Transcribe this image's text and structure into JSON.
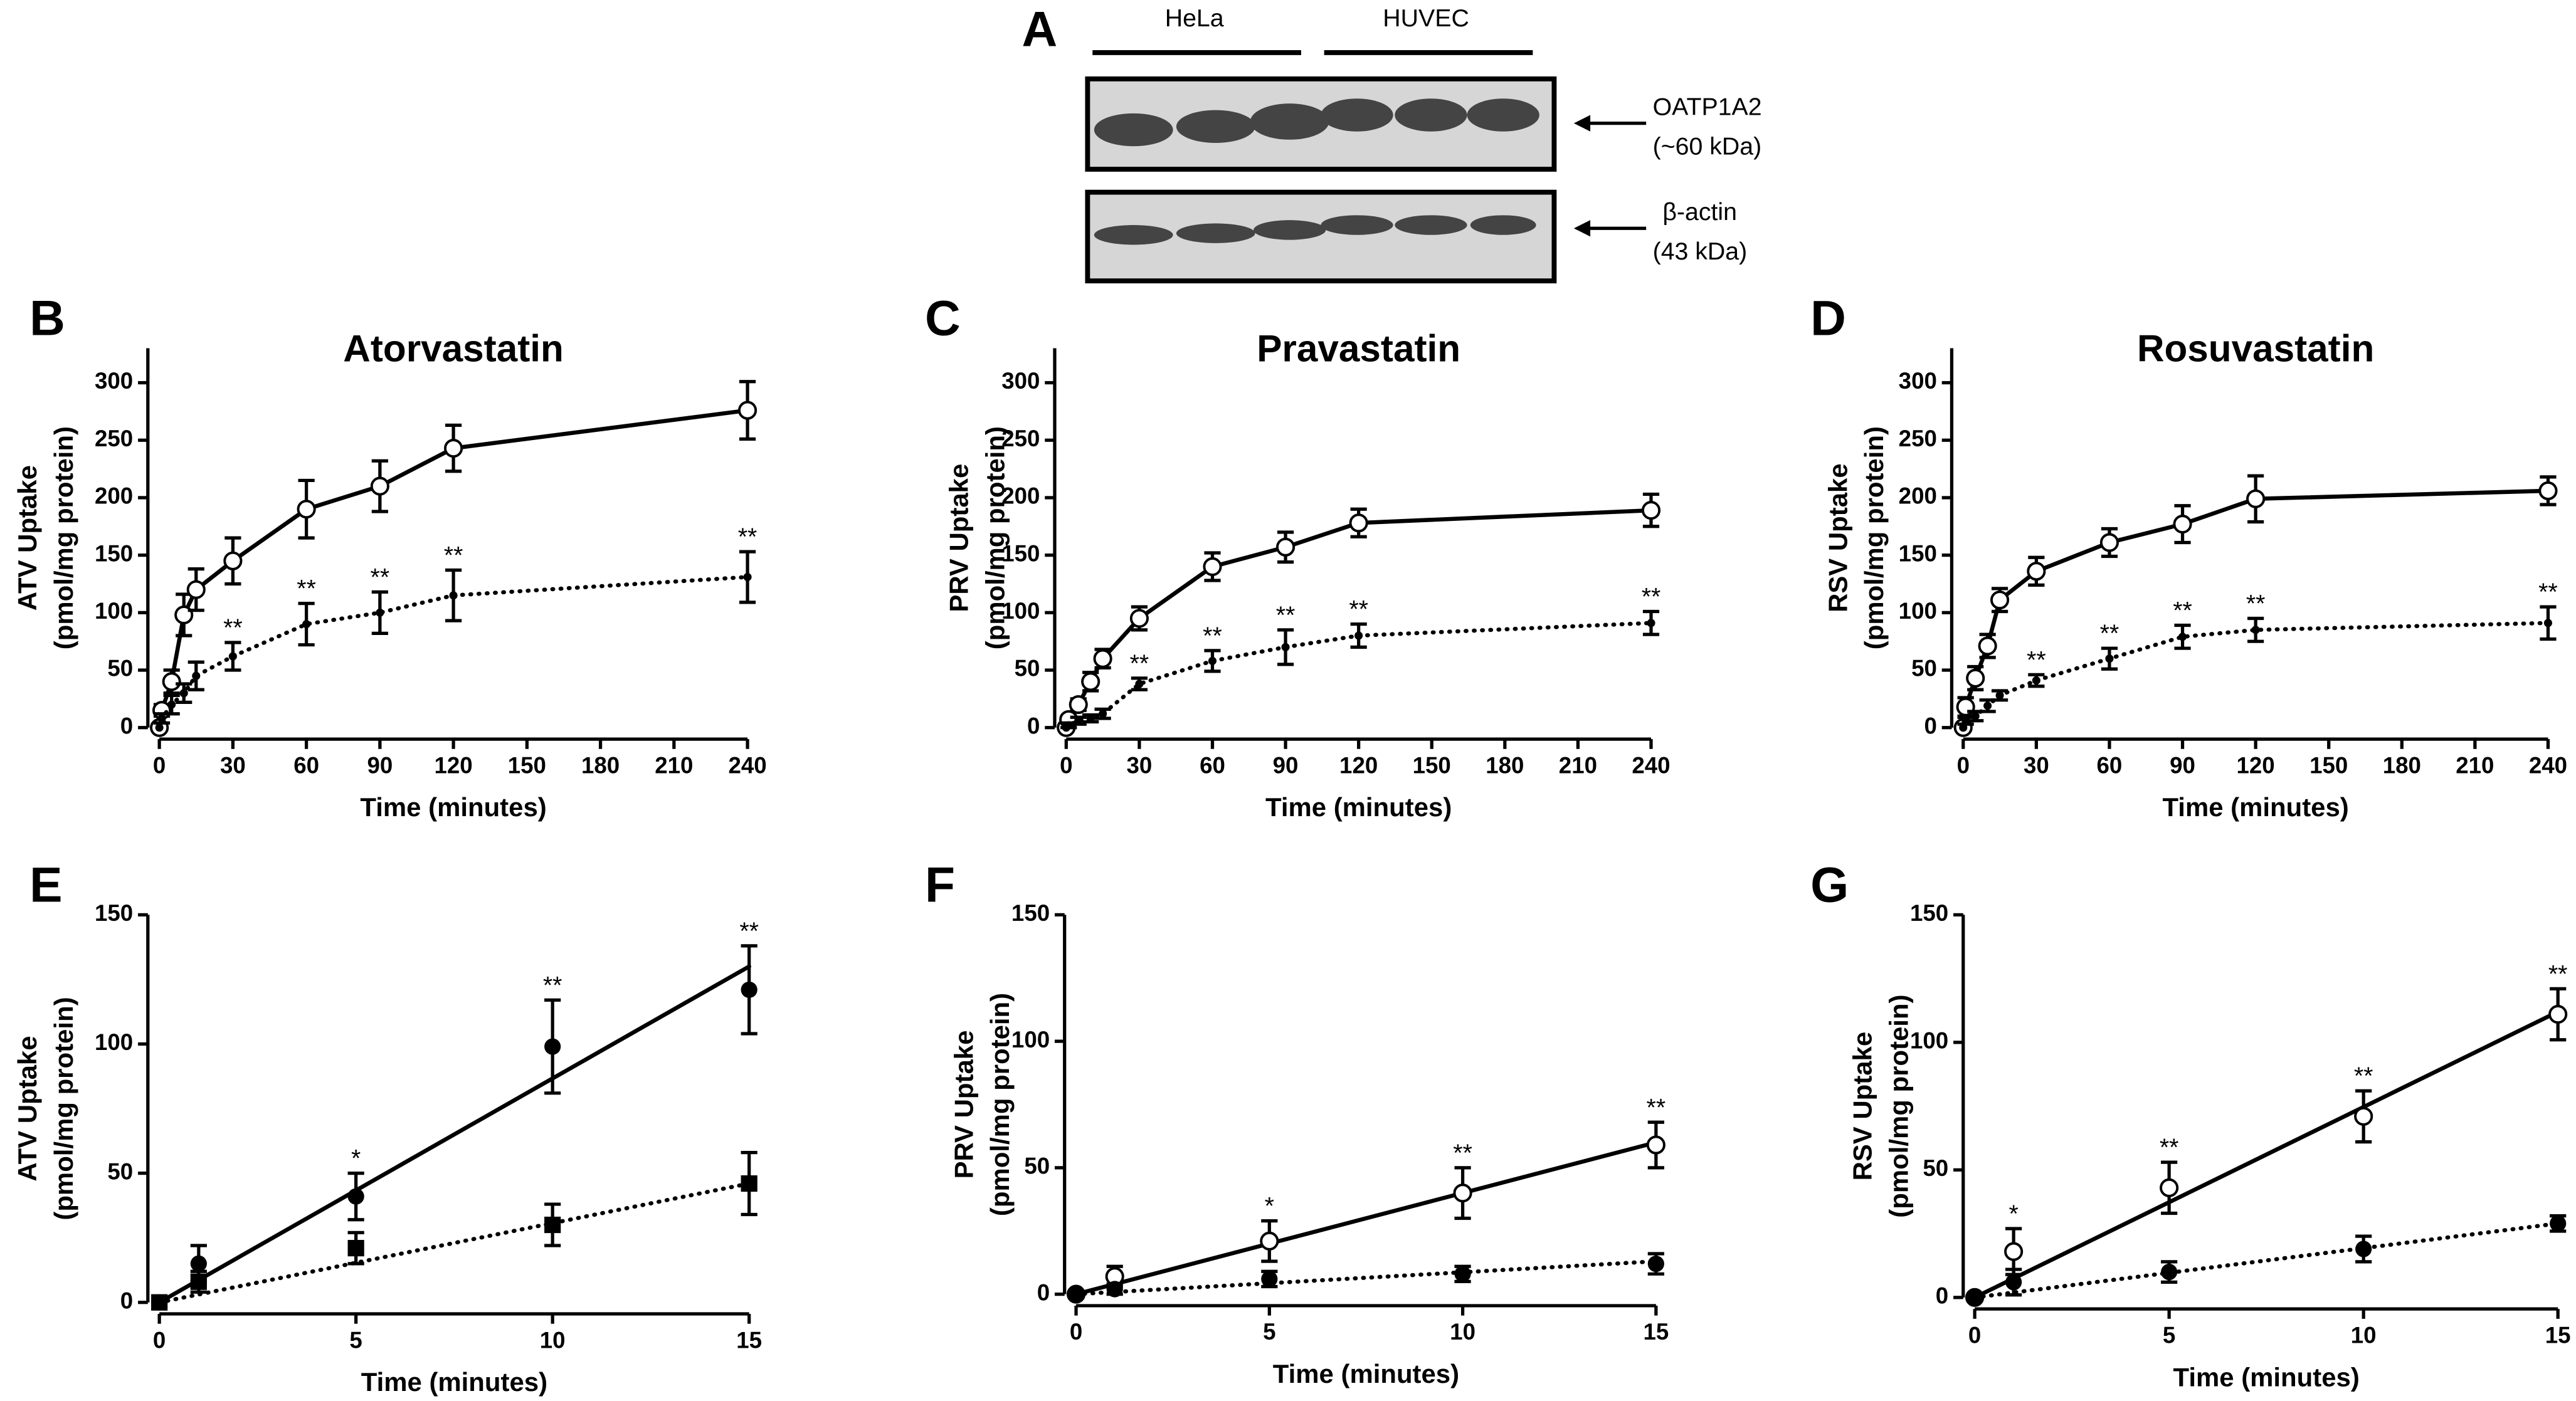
{
  "blot": {
    "panel": "A",
    "groups": [
      "HeLa",
      "HUVEC"
    ],
    "bands": [
      {
        "name": "OATP1A2",
        "size": "(~60 kDa)"
      },
      {
        "name": "β-actin",
        "size": "(43 kDa)"
      }
    ]
  },
  "chart_data": [
    {
      "type": "line",
      "panel": "B",
      "title": "Atorvastatin",
      "ylabel": [
        "ATV Uptake",
        "(pmol/mg protein)"
      ],
      "xlabel": "Time (minutes)",
      "x": [
        0,
        1,
        5,
        10,
        15,
        30,
        60,
        90,
        120,
        240
      ],
      "xlim": [
        0,
        240
      ],
      "xticks": [
        0,
        30,
        60,
        90,
        120,
        150,
        180,
        210,
        240
      ],
      "ylim": [
        0,
        330
      ],
      "yticks": [
        0,
        50,
        100,
        150,
        200,
        250,
        300
      ],
      "series": [
        {
          "color": "#000000",
          "line_style": "solid",
          "marker": "open-circle",
          "values": [
            0,
            15,
            40,
            98,
            120,
            145,
            190,
            210,
            243,
            276
          ],
          "errors": [
            0,
            5,
            10,
            18,
            18,
            20,
            25,
            22,
            20,
            25
          ]
        },
        {
          "color": "#000000",
          "line_style": "dotted",
          "marker": "dot",
          "values": [
            0,
            8,
            20,
            30,
            45,
            62,
            90,
            100,
            115,
            131
          ],
          "errors": [
            0,
            4,
            8,
            8,
            12,
            12,
            18,
            18,
            22,
            22
          ],
          "significance": [
            null,
            null,
            null,
            null,
            null,
            "**",
            "**",
            "**",
            "**",
            "**"
          ]
        }
      ]
    },
    {
      "type": "line",
      "panel": "C",
      "title": "Pravastatin",
      "ylabel": [
        "PRV Uptake",
        "(pmol/mg protein)"
      ],
      "xlabel": "Time (minutes)",
      "x": [
        0,
        1,
        5,
        10,
        15,
        30,
        60,
        90,
        120,
        240
      ],
      "xlim": [
        0,
        240
      ],
      "xticks": [
        0,
        30,
        60,
        90,
        120,
        150,
        180,
        210,
        240
      ],
      "ylim": [
        0,
        330
      ],
      "yticks": [
        0,
        50,
        100,
        150,
        200,
        250,
        300
      ],
      "series": [
        {
          "color": "#000000",
          "line_style": "solid",
          "marker": "open-circle",
          "values": [
            0,
            7,
            20,
            40,
            60,
            95,
            140,
            157,
            178,
            189
          ],
          "errors": [
            0,
            3,
            5,
            8,
            8,
            10,
            12,
            13,
            12,
            14
          ]
        },
        {
          "color": "#000000",
          "line_style": "dotted",
          "marker": "dot",
          "values": [
            0,
            2,
            6,
            8,
            12,
            38,
            58,
            70,
            80,
            91
          ],
          "errors": [
            0,
            2,
            3,
            3,
            4,
            5,
            9,
            15,
            10,
            10
          ],
          "significance": [
            null,
            null,
            null,
            null,
            null,
            "**",
            "**",
            "**",
            "**",
            "**"
          ]
        }
      ]
    },
    {
      "type": "line",
      "panel": "D",
      "title": "Rosuvastatin",
      "ylabel": [
        "RSV Uptake",
        "(pmol/mg protein)"
      ],
      "xlabel": "Time (minutes)",
      "x": [
        0,
        1,
        5,
        10,
        15,
        30,
        60,
        90,
        120,
        240
      ],
      "xlim": [
        0,
        240
      ],
      "xticks": [
        0,
        30,
        60,
        90,
        120,
        150,
        180,
        210,
        240
      ],
      "ylim": [
        0,
        330
      ],
      "yticks": [
        0,
        50,
        100,
        150,
        200,
        250,
        300
      ],
      "series": [
        {
          "color": "#000000",
          "line_style": "solid",
          "marker": "open-circle",
          "values": [
            0,
            18,
            43,
            71,
            111,
            136,
            161,
            177,
            199,
            206
          ],
          "errors": [
            0,
            8,
            10,
            10,
            10,
            12,
            12,
            16,
            20,
            12
          ]
        },
        {
          "color": "#000000",
          "line_style": "dotted",
          "marker": "dot",
          "values": [
            0,
            6,
            10,
            19,
            28,
            41,
            60,
            79,
            85,
            91
          ],
          "errors": [
            0,
            3,
            4,
            5,
            4,
            5,
            9,
            10,
            10,
            14
          ],
          "significance": [
            null,
            null,
            null,
            null,
            null,
            "**",
            "**",
            "**",
            "**",
            "**"
          ]
        }
      ]
    },
    {
      "type": "line",
      "panel": "E",
      "ylabel": [
        "ATV Uptake",
        "(pmol/mg protein)"
      ],
      "xlabel": "Time (minutes)",
      "x": [
        0,
        1,
        5,
        10,
        15
      ],
      "xlim": [
        0,
        15
      ],
      "xticks": [
        0,
        5,
        10,
        15
      ],
      "ylim": [
        0,
        150
      ],
      "yticks": [
        0,
        50,
        100,
        150
      ],
      "series": [
        {
          "color": "#000000",
          "line_style": "solid",
          "marker": "circle",
          "values": [
            0,
            15,
            41,
            99,
            121
          ],
          "errors": [
            0,
            7,
            9,
            18,
            17
          ],
          "fit": {
            "x": [
              0,
              15
            ],
            "values": [
              0,
              130
            ]
          },
          "significance": [
            null,
            null,
            "*",
            "**",
            "**"
          ]
        },
        {
          "color": "#000000",
          "line_style": "dotted",
          "marker": "square",
          "values": [
            0,
            8,
            21,
            30,
            46
          ],
          "errors": [
            0,
            4,
            6,
            8,
            12
          ],
          "fit": {
            "x": [
              0,
              15
            ],
            "values": [
              0,
              46
            ]
          }
        }
      ]
    },
    {
      "type": "line",
      "panel": "F",
      "ylabel": [
        "PRV Uptake",
        "(pmol/mg protein)"
      ],
      "xlabel": "Time (minutes)",
      "x": [
        0,
        1,
        5,
        10,
        15
      ],
      "xlim": [
        0,
        15
      ],
      "xticks": [
        0,
        5,
        10,
        15
      ],
      "ylim": [
        0,
        150
      ],
      "yticks": [
        0,
        50,
        100,
        150
      ],
      "series": [
        {
          "color": "#000000",
          "line_style": "solid",
          "marker": "open-circle",
          "values": [
            0,
            7,
            21,
            40,
            59
          ],
          "errors": [
            0,
            4,
            8,
            10,
            9
          ],
          "fit": {
            "x": [
              0,
              15
            ],
            "values": [
              0,
              60
            ]
          },
          "significance": [
            null,
            null,
            "*",
            "**",
            "**"
          ]
        },
        {
          "color": "#000000",
          "line_style": "dotted",
          "marker": "circle",
          "values": [
            0,
            2,
            6,
            8,
            12
          ],
          "errors": [
            0,
            2,
            3,
            3,
            4
          ],
          "fit": {
            "x": [
              0,
              15
            ],
            "values": [
              0,
              13
            ]
          }
        }
      ]
    },
    {
      "type": "line",
      "panel": "G",
      "ylabel": [
        "RSV Uptake",
        "(pmol/mg protein)"
      ],
      "xlabel": "Time (minutes)",
      "x": [
        0,
        1,
        5,
        10,
        15
      ],
      "xlim": [
        0,
        15
      ],
      "xticks": [
        0,
        5,
        10,
        15
      ],
      "ylim": [
        0,
        150
      ],
      "yticks": [
        0,
        50,
        100,
        150
      ],
      "series": [
        {
          "color": "#000000",
          "line_style": "solid",
          "marker": "open-circle",
          "values": [
            0,
            18,
            43,
            71,
            111
          ],
          "errors": [
            0,
            9,
            10,
            10,
            10
          ],
          "fit": {
            "x": [
              0,
              15
            ],
            "values": [
              0,
              112
            ]
          },
          "significance": [
            null,
            "*",
            "**",
            "**",
            "**"
          ]
        },
        {
          "color": "#000000",
          "line_style": "dotted",
          "marker": "circle",
          "values": [
            0,
            6,
            10,
            19,
            29
          ],
          "errors": [
            0,
            5,
            4,
            5,
            3
          ],
          "fit": {
            "x": [
              0,
              15
            ],
            "values": [
              0,
              29
            ]
          }
        }
      ]
    }
  ]
}
